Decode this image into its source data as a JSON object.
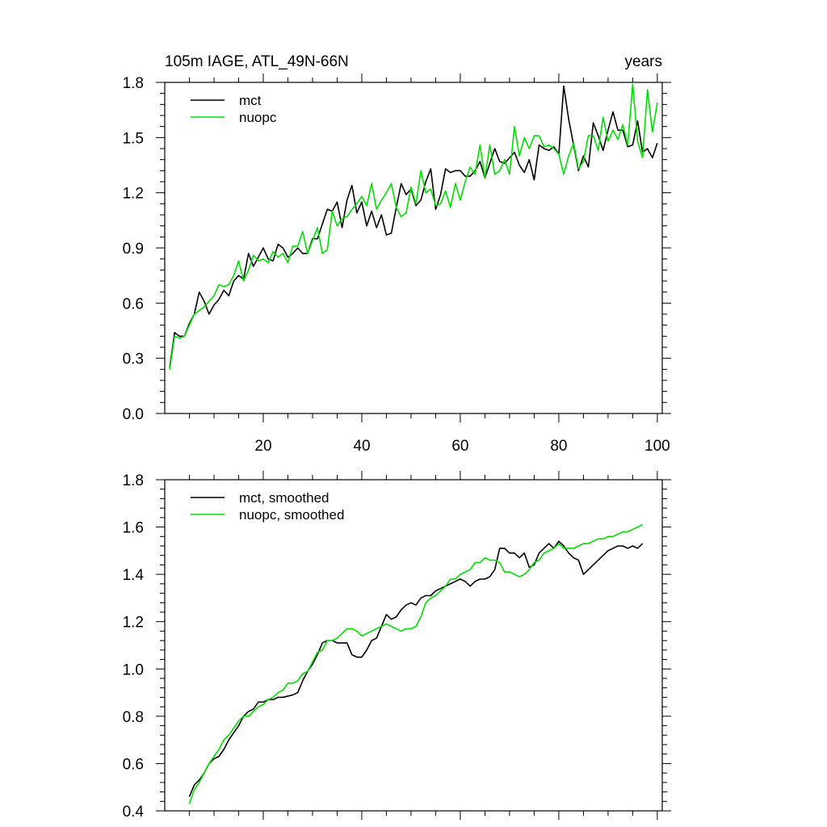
{
  "chart_data": [
    {
      "type": "line",
      "title": "105m IAGE, ATL_49N-66N",
      "title_right": "years",
      "xlabel": "",
      "ylabel": "",
      "xlim": [
        0,
        101
      ],
      "ylim": [
        0.0,
        1.8
      ],
      "x_ticks": [
        20,
        40,
        60,
        80,
        100
      ],
      "x_tick_labels": [
        "20",
        "40",
        "60",
        "80",
        "100"
      ],
      "y_ticks": [
        0.0,
        0.3,
        0.6,
        0.9,
        1.2,
        1.5,
        1.8
      ],
      "y_tick_labels": [
        "0.0",
        "0.3",
        "0.6",
        "0.9",
        "1.2",
        "1.5",
        "1.8"
      ],
      "legend_position": "top-left",
      "series": [
        {
          "name": "mct",
          "color": "#000000",
          "x": [
            1,
            2,
            3,
            4,
            5,
            6,
            7,
            8,
            9,
            10,
            11,
            12,
            13,
            14,
            15,
            16,
            17,
            18,
            19,
            20,
            21,
            22,
            23,
            24,
            25,
            26,
            27,
            28,
            29,
            30,
            31,
            32,
            33,
            34,
            35,
            36,
            37,
            38,
            39,
            40,
            41,
            42,
            43,
            44,
            45,
            46,
            47,
            48,
            49,
            50,
            51,
            52,
            53,
            54,
            55,
            56,
            57,
            58,
            59,
            60,
            61,
            62,
            63,
            64,
            65,
            66,
            67,
            68,
            69,
            70,
            71,
            72,
            73,
            74,
            75,
            76,
            77,
            78,
            79,
            80,
            81,
            82,
            83,
            84,
            85,
            86,
            87,
            88,
            89,
            90,
            91,
            92,
            93,
            94,
            95,
            96,
            97,
            98,
            99,
            100
          ],
          "values": [
            0.25,
            0.44,
            0.42,
            0.42,
            0.49,
            0.54,
            0.66,
            0.61,
            0.54,
            0.59,
            0.62,
            0.67,
            0.64,
            0.72,
            0.75,
            0.73,
            0.87,
            0.8,
            0.85,
            0.9,
            0.84,
            0.83,
            0.92,
            0.9,
            0.85,
            0.87,
            0.9,
            0.87,
            0.87,
            0.95,
            0.95,
            1.03,
            1.11,
            1.1,
            1.15,
            1.01,
            1.16,
            1.24,
            1.09,
            1.15,
            1.02,
            1.1,
            1.01,
            1.08,
            0.97,
            0.98,
            1.12,
            1.25,
            1.19,
            1.22,
            1.13,
            1.16,
            1.26,
            1.33,
            1.11,
            1.19,
            1.33,
            1.31,
            1.32,
            1.32,
            1.29,
            1.29,
            1.32,
            1.37,
            1.28,
            1.36,
            1.44,
            1.37,
            1.36,
            1.39,
            1.42,
            1.35,
            1.31,
            1.38,
            1.27,
            1.46,
            1.44,
            1.43,
            1.45,
            1.41,
            1.78,
            1.6,
            1.46,
            1.32,
            1.4,
            1.34,
            1.58,
            1.51,
            1.43,
            1.54,
            1.64,
            1.54,
            1.54,
            1.45,
            1.46,
            1.59,
            1.42,
            1.44,
            1.39,
            1.47
          ]
        },
        {
          "name": "nuopc",
          "color": "#00dd00",
          "x": [
            1,
            2,
            3,
            4,
            5,
            6,
            7,
            8,
            9,
            10,
            11,
            12,
            13,
            14,
            15,
            16,
            17,
            18,
            19,
            20,
            21,
            22,
            23,
            24,
            25,
            26,
            27,
            28,
            29,
            30,
            31,
            32,
            33,
            34,
            35,
            36,
            37,
            38,
            39,
            40,
            41,
            42,
            43,
            44,
            45,
            46,
            47,
            48,
            49,
            50,
            51,
            52,
            53,
            54,
            55,
            56,
            57,
            58,
            59,
            60,
            61,
            62,
            63,
            64,
            65,
            66,
            67,
            68,
            69,
            70,
            71,
            72,
            73,
            74,
            75,
            76,
            77,
            78,
            79,
            80,
            81,
            82,
            83,
            84,
            85,
            86,
            87,
            88,
            89,
            90,
            91,
            92,
            93,
            94,
            95,
            96,
            97,
            98,
            99,
            100
          ],
          "values": [
            0.24,
            0.42,
            0.41,
            0.42,
            0.48,
            0.54,
            0.56,
            0.58,
            0.61,
            0.64,
            0.7,
            0.69,
            0.7,
            0.75,
            0.83,
            0.72,
            0.78,
            0.86,
            0.83,
            0.84,
            0.82,
            0.88,
            0.85,
            0.87,
            0.82,
            0.91,
            0.91,
            0.99,
            0.87,
            0.94,
            1.01,
            0.87,
            0.89,
            1.1,
            1.02,
            1.06,
            1.07,
            1.11,
            1.14,
            1.18,
            1.13,
            1.25,
            1.11,
            1.16,
            1.2,
            1.25,
            1.12,
            1.07,
            1.09,
            1.23,
            1.14,
            1.32,
            1.2,
            1.22,
            1.13,
            1.14,
            1.21,
            1.12,
            1.25,
            1.16,
            1.26,
            1.34,
            1.3,
            1.46,
            1.28,
            1.46,
            1.3,
            1.32,
            1.38,
            1.3,
            1.56,
            1.4,
            1.5,
            1.44,
            1.51,
            1.51,
            1.45,
            1.46,
            1.44,
            1.41,
            1.3,
            1.4,
            1.47,
            1.33,
            1.37,
            1.51,
            1.51,
            1.43,
            1.61,
            1.48,
            1.54,
            1.49,
            1.57,
            1.46,
            1.79,
            1.48,
            1.39,
            1.76,
            1.53,
            1.69
          ]
        }
      ]
    },
    {
      "type": "line",
      "title": "",
      "xlabel": "",
      "ylabel": "",
      "xlim": [
        0,
        101
      ],
      "ylim": [
        0.4,
        1.8
      ],
      "x_ticks": [
        20,
        40,
        60,
        80,
        100
      ],
      "x_tick_labels": [],
      "y_ticks": [
        0.4,
        0.6,
        0.8,
        1.0,
        1.2,
        1.4,
        1.6,
        1.8
      ],
      "y_tick_labels": [
        "0.4",
        "0.6",
        "0.8",
        "1.0",
        "1.2",
        "1.4",
        "1.6",
        "1.8"
      ],
      "legend_position": "top-left",
      "series": [
        {
          "name": "mct, smoothed",
          "color": "#000000",
          "x": [
            5,
            6,
            7,
            8,
            9,
            10,
            11,
            12,
            13,
            14,
            15,
            16,
            17,
            18,
            19,
            20,
            21,
            22,
            23,
            24,
            25,
            26,
            27,
            28,
            29,
            30,
            31,
            32,
            33,
            34,
            35,
            36,
            37,
            38,
            39,
            40,
            41,
            42,
            43,
            44,
            45,
            46,
            47,
            48,
            49,
            50,
            51,
            52,
            53,
            54,
            55,
            56,
            57,
            58,
            59,
            60,
            61,
            62,
            63,
            64,
            65,
            66,
            67,
            68,
            69,
            70,
            71,
            72,
            73,
            74,
            75,
            76,
            77,
            78,
            79,
            80,
            81,
            82,
            83,
            84,
            85,
            86,
            87,
            88,
            89,
            90,
            91,
            92,
            93,
            94,
            95,
            96,
            97
          ],
          "values": [
            0.46,
            0.51,
            0.53,
            0.56,
            0.6,
            0.62,
            0.63,
            0.66,
            0.7,
            0.73,
            0.76,
            0.8,
            0.82,
            0.83,
            0.86,
            0.86,
            0.87,
            0.87,
            0.88,
            0.88,
            0.885,
            0.89,
            0.9,
            0.95,
            0.99,
            1.02,
            1.06,
            1.11,
            1.12,
            1.12,
            1.11,
            1.11,
            1.11,
            1.06,
            1.05,
            1.05,
            1.08,
            1.12,
            1.13,
            1.18,
            1.23,
            1.21,
            1.22,
            1.25,
            1.27,
            1.28,
            1.27,
            1.3,
            1.31,
            1.31,
            1.33,
            1.34,
            1.35,
            1.36,
            1.37,
            1.38,
            1.37,
            1.35,
            1.37,
            1.38,
            1.38,
            1.39,
            1.42,
            1.51,
            1.51,
            1.49,
            1.49,
            1.47,
            1.49,
            1.43,
            1.44,
            1.49,
            1.51,
            1.53,
            1.51,
            1.54,
            1.52,
            1.49,
            1.47,
            1.46,
            1.4,
            1.42,
            1.44,
            1.46,
            1.48,
            1.5,
            1.51,
            1.52,
            1.52,
            1.51,
            1.52,
            1.51,
            1.53
          ]
        },
        {
          "name": "nuopc, smoothed",
          "color": "#00dd00",
          "x": [
            5,
            6,
            7,
            8,
            9,
            10,
            11,
            12,
            13,
            14,
            15,
            16,
            17,
            18,
            19,
            20,
            21,
            22,
            23,
            24,
            25,
            26,
            27,
            28,
            29,
            30,
            31,
            32,
            33,
            34,
            35,
            36,
            37,
            38,
            39,
            40,
            41,
            42,
            43,
            44,
            45,
            46,
            47,
            48,
            49,
            50,
            51,
            52,
            53,
            54,
            55,
            56,
            57,
            58,
            59,
            60,
            61,
            62,
            63,
            64,
            65,
            66,
            67,
            68,
            69,
            70,
            71,
            72,
            73,
            74,
            75,
            76,
            77,
            78,
            79,
            80,
            81,
            82,
            83,
            84,
            85,
            86,
            87,
            88,
            89,
            90,
            91,
            92,
            93,
            94,
            95,
            96,
            97
          ],
          "values": [
            0.43,
            0.49,
            0.52,
            0.56,
            0.6,
            0.63,
            0.66,
            0.7,
            0.72,
            0.75,
            0.78,
            0.8,
            0.8,
            0.82,
            0.84,
            0.85,
            0.87,
            0.88,
            0.9,
            0.91,
            0.94,
            0.94,
            0.95,
            0.98,
            0.99,
            1.03,
            1.07,
            1.08,
            1.12,
            1.12,
            1.13,
            1.15,
            1.17,
            1.17,
            1.16,
            1.14,
            1.15,
            1.16,
            1.17,
            1.18,
            1.19,
            1.18,
            1.17,
            1.16,
            1.17,
            1.17,
            1.18,
            1.22,
            1.28,
            1.3,
            1.31,
            1.33,
            1.35,
            1.38,
            1.38,
            1.4,
            1.41,
            1.42,
            1.45,
            1.45,
            1.47,
            1.46,
            1.46,
            1.45,
            1.41,
            1.41,
            1.4,
            1.39,
            1.4,
            1.42,
            1.45,
            1.46,
            1.49,
            1.5,
            1.51,
            1.53,
            1.51,
            1.51,
            1.51,
            1.52,
            1.53,
            1.53,
            1.54,
            1.55,
            1.55,
            1.56,
            1.56,
            1.57,
            1.58,
            1.58,
            1.59,
            1.6,
            1.61
          ]
        }
      ]
    }
  ]
}
